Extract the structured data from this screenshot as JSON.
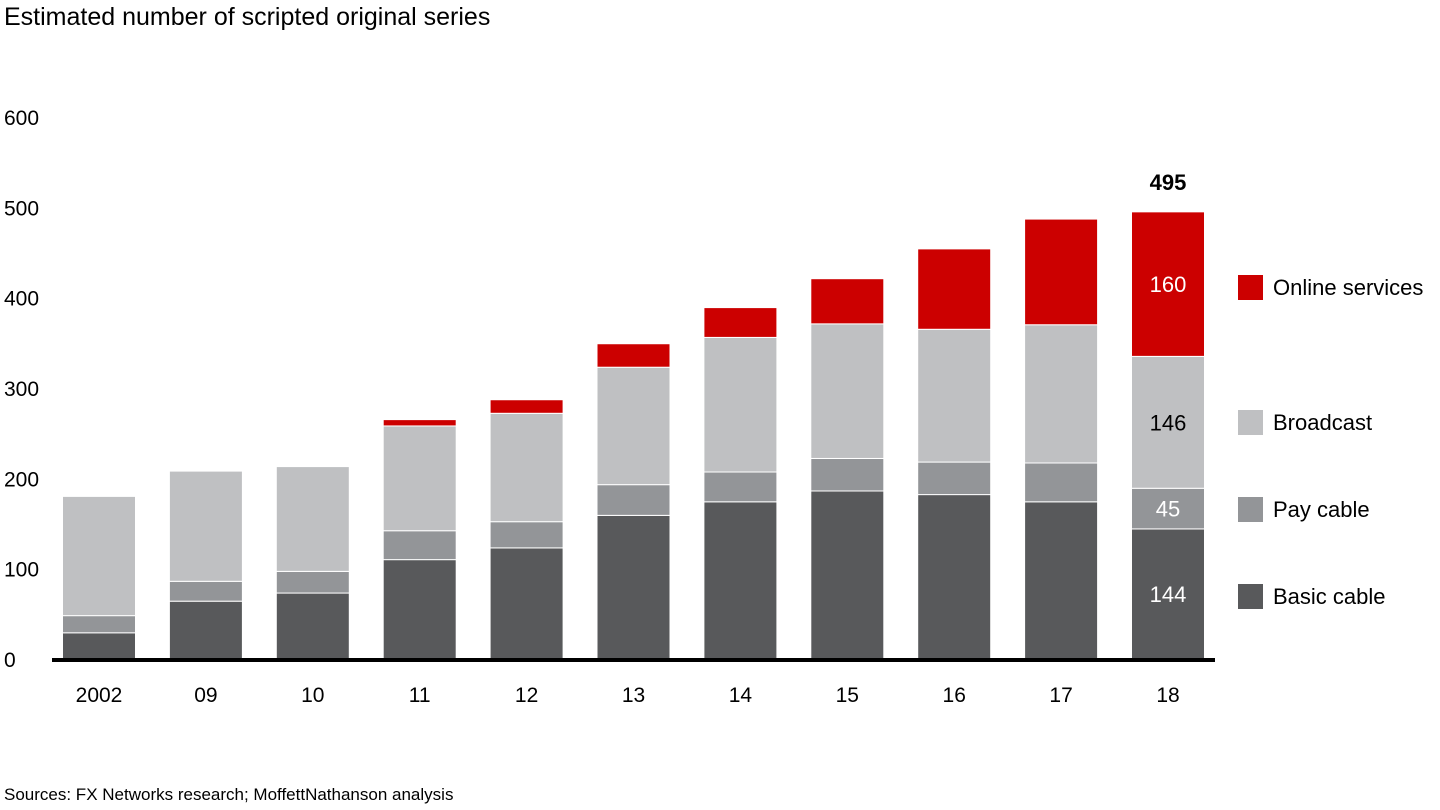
{
  "title": "Estimated number of scripted original series",
  "source": "Sources: FX Networks research; MoffettNathanson analysis",
  "chart_data": {
    "type": "bar",
    "stacked": true,
    "title": "Estimated number of scripted original series",
    "xlabel": "",
    "ylabel": "",
    "ylim": [
      0,
      600
    ],
    "yticks": [
      0,
      100,
      200,
      300,
      400,
      500,
      600
    ],
    "grid": false,
    "legend_position": "right",
    "categories": [
      "2002",
      "09",
      "10",
      "11",
      "12",
      "13",
      "14",
      "15",
      "16",
      "17",
      "18"
    ],
    "series": [
      {
        "name": "Basic cable",
        "color": "#58595b",
        "values": [
          29,
          64,
          73,
          110,
          123,
          159,
          174,
          186,
          182,
          174,
          144
        ]
      },
      {
        "name": "Pay cable",
        "color": "#939598",
        "values": [
          19,
          22,
          24,
          32,
          29,
          34,
          33,
          36,
          36,
          43,
          45
        ]
      },
      {
        "name": "Broadcast",
        "color": "#bfc0c2",
        "values": [
          132,
          122,
          116,
          116,
          120,
          130,
          149,
          149,
          147,
          153,
          146
        ]
      },
      {
        "name": "Online services",
        "color": "#cc0000",
        "values": [
          0,
          0,
          0,
          7,
          15,
          26,
          33,
          50,
          89,
          117,
          160
        ]
      }
    ],
    "data_labels": {
      "category": "18",
      "segments": [
        "144",
        "45",
        "146",
        "160"
      ],
      "total": "495"
    }
  }
}
